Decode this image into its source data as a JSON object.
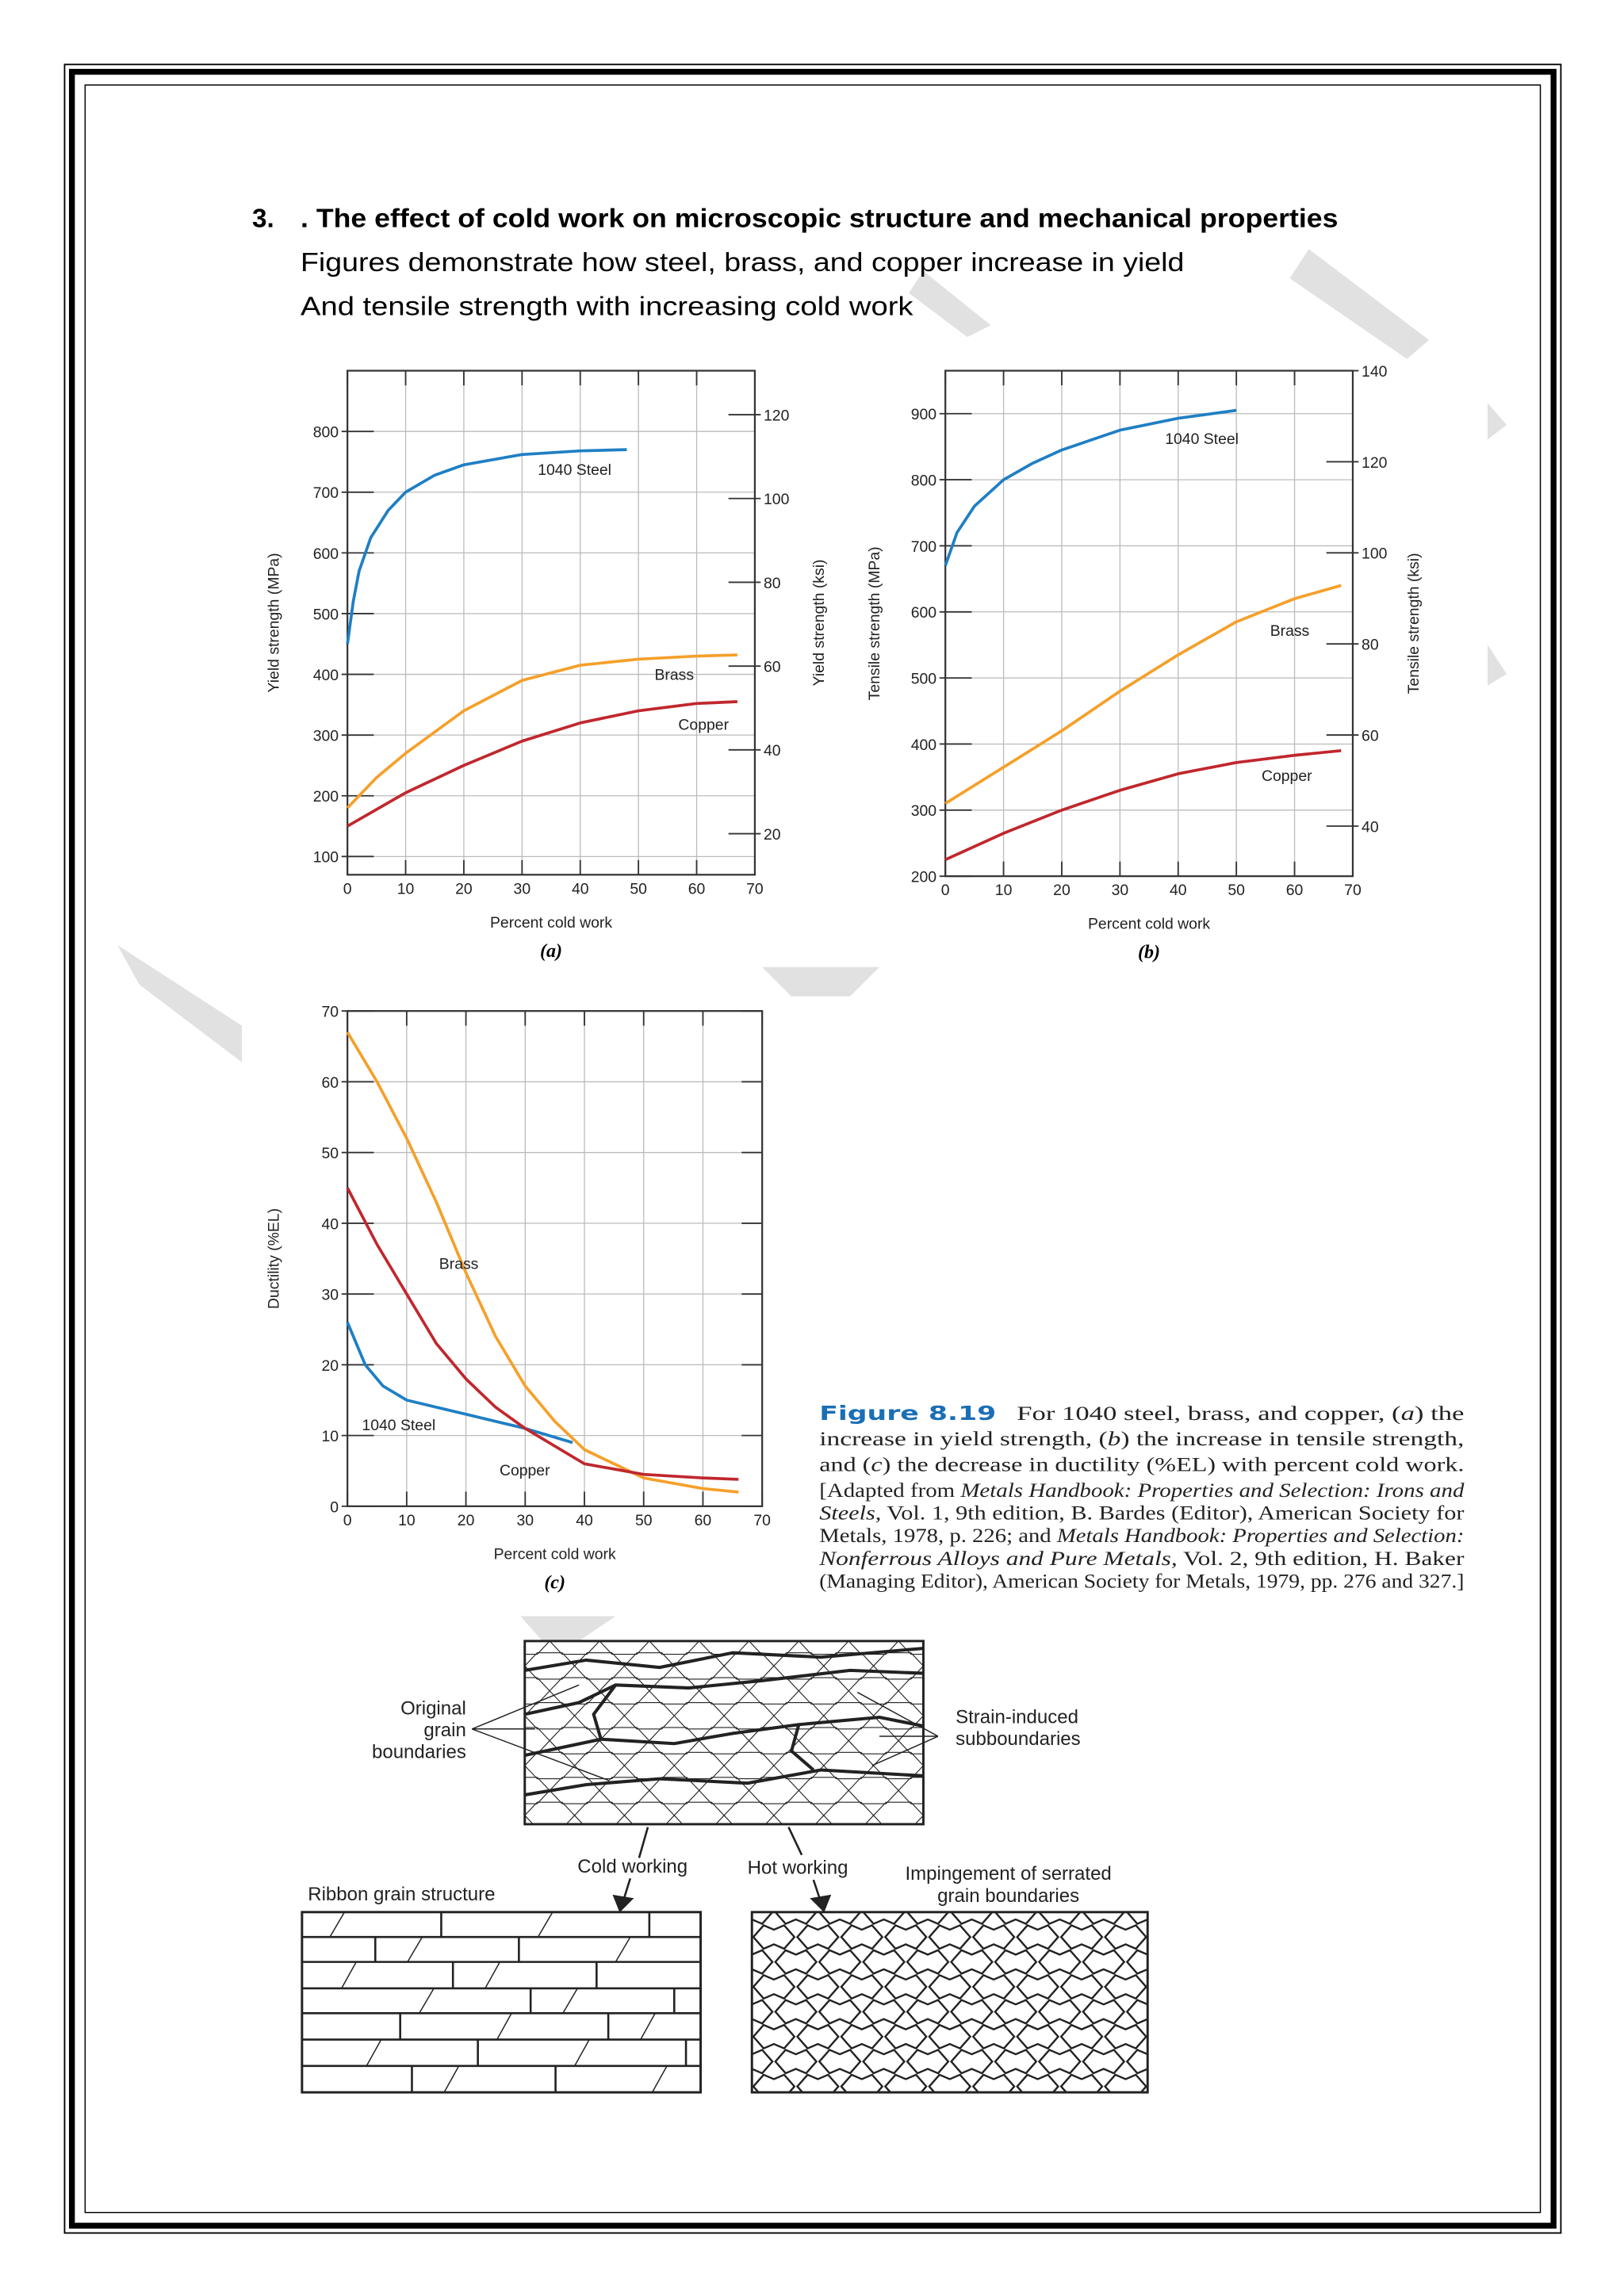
{
  "heading": {
    "number": "3.",
    "title": ". The effect of cold work on microscopic structure and mechanical properties",
    "lines": [
      "Figures demonstrate how steel, brass, and copper increase in yield",
      "And tensile strength with increasing cold work"
    ]
  },
  "chart_data": [
    {
      "type": "line",
      "xlabel": "Percent cold work",
      "ylabel": "Yield strength (MPa)",
      "y2label": "Yield strength (ksi)",
      "sublabel": "(a)",
      "xlim": [
        0,
        70
      ],
      "xticks": [
        0,
        10,
        20,
        30,
        40,
        50,
        60,
        70
      ],
      "ylim": [
        70,
        900
      ],
      "yticks": [
        100,
        200,
        300,
        400,
        500,
        600,
        700,
        800
      ],
      "y2lim": [
        10.2,
        130.5
      ],
      "y2ticks": [
        20,
        40,
        60,
        80,
        100,
        120
      ],
      "grid": true,
      "series": [
        {
          "name": "1040 Steel",
          "color": "#1f7fc4",
          "x": [
            0,
            1,
            2,
            4,
            7,
            10,
            15,
            20,
            30,
            40,
            48
          ],
          "values": [
            450,
            520,
            570,
            625,
            670,
            700,
            728,
            745,
            762,
            768,
            770
          ]
        },
        {
          "name": "Brass",
          "color": "#f5a02a",
          "x": [
            0,
            5,
            10,
            15,
            20,
            25,
            30,
            40,
            50,
            60,
            67
          ],
          "values": [
            180,
            230,
            270,
            305,
            340,
            365,
            390,
            415,
            425,
            430,
            432
          ]
        },
        {
          "name": "Copper",
          "color": "#c0272d",
          "x": [
            0,
            10,
            20,
            30,
            40,
            50,
            60,
            67
          ],
          "values": [
            150,
            205,
            250,
            290,
            320,
            340,
            352,
            355
          ]
        }
      ]
    },
    {
      "type": "line",
      "xlabel": "Percent cold work",
      "ylabel": "Tensile strength (MPa)",
      "y2label": "Tensile strength (ksi)",
      "sublabel": "(b)",
      "xlim": [
        0,
        70
      ],
      "xticks": [
        0,
        10,
        20,
        30,
        40,
        50,
        60,
        70
      ],
      "ylim": [
        200,
        965
      ],
      "yticks": [
        200,
        300,
        400,
        500,
        600,
        700,
        800,
        900
      ],
      "y2lim": [
        29,
        140
      ],
      "y2ticks": [
        40,
        60,
        80,
        100,
        120,
        140
      ],
      "grid": true,
      "series": [
        {
          "name": "1040 Steel",
          "color": "#1f7fc4",
          "x": [
            0,
            2,
            5,
            10,
            15,
            20,
            30,
            40,
            50
          ],
          "values": [
            670,
            720,
            760,
            800,
            825,
            845,
            875,
            893,
            905
          ]
        },
        {
          "name": "Brass",
          "color": "#f5a02a",
          "x": [
            0,
            10,
            20,
            30,
            40,
            50,
            60,
            68
          ],
          "values": [
            310,
            365,
            420,
            480,
            535,
            585,
            620,
            640
          ]
        },
        {
          "name": "Copper",
          "color": "#c0272d",
          "x": [
            0,
            10,
            20,
            30,
            40,
            50,
            60,
            68
          ],
          "values": [
            225,
            265,
            300,
            330,
            355,
            372,
            383,
            390
          ]
        }
      ]
    },
    {
      "type": "line",
      "xlabel": "Percent cold work",
      "ylabel": "Ductility (%EL)",
      "sublabel": "(c)",
      "xlim": [
        0,
        70
      ],
      "xticks": [
        0,
        10,
        20,
        30,
        40,
        50,
        60,
        70
      ],
      "ylim": [
        0,
        70
      ],
      "yticks": [
        0,
        10,
        20,
        30,
        40,
        50,
        60,
        70
      ],
      "grid": true,
      "series": [
        {
          "name": "1040 Steel",
          "color": "#1f7fc4",
          "x": [
            0,
            3,
            6,
            10,
            15,
            20,
            30,
            38
          ],
          "values": [
            26,
            20,
            17,
            15,
            14,
            13,
            11,
            9
          ]
        },
        {
          "name": "Brass",
          "color": "#f5a02a",
          "x": [
            0,
            5,
            10,
            15,
            20,
            25,
            30,
            35,
            40,
            50,
            60,
            66
          ],
          "values": [
            67,
            60,
            52,
            43,
            33,
            24,
            17,
            12,
            8,
            4,
            2.5,
            2
          ]
        },
        {
          "name": "Copper",
          "color": "#c0272d",
          "x": [
            0,
            5,
            10,
            15,
            20,
            25,
            30,
            40,
            50,
            60,
            66
          ],
          "values": [
            45,
            37,
            30,
            23,
            18,
            14,
            11,
            6,
            4.5,
            4,
            3.8
          ]
        }
      ]
    }
  ],
  "caption": {
    "label": "Figure 8.19",
    "lines": [
      [
        {
          "text": "   For 1040 steel, brass, and copper, ("
        },
        {
          "text": "a",
          "italic": true
        },
        {
          "text": ") the"
        }
      ],
      [
        {
          "text": "increase in yield strength, ("
        },
        {
          "text": "b",
          "italic": true
        },
        {
          "text": ") the increase in tensile strength,"
        }
      ],
      [
        {
          "text": "and ("
        },
        {
          "text": "c",
          "italic": true
        },
        {
          "text": ") the decrease in ductility (%EL) with percent cold work."
        }
      ],
      [
        {
          "text": "[Adapted from "
        },
        {
          "text": "Metals Handbook: Properties and Selection: Irons and",
          "italic": true
        }
      ],
      [
        {
          "text": "Steels,",
          "italic": true
        },
        {
          "text": " Vol. 1, 9th edition, B. Bardes (Editor), American Society for"
        }
      ],
      [
        {
          "text": "Metals, 1978, p. 226; and "
        },
        {
          "text": "Metals Handbook: Properties and Selection:",
          "italic": true
        }
      ],
      [
        {
          "text": "Nonferrous Alloys and Pure Metals,",
          "italic": true
        },
        {
          "text": " Vol. 2, 9th edition, H. Baker"
        }
      ],
      [
        {
          "text": "(Managing Editor), American Society for Metals, 1979, pp. 276 and 327.]"
        }
      ]
    ]
  },
  "diagram": {
    "original": [
      "Original",
      "grain",
      "boundaries"
    ],
    "strain": [
      "Strain-induced",
      "subboundaries"
    ],
    "cold": "Cold working",
    "hot": "Hot working",
    "ribbon": "Ribbon grain structure",
    "impingement": [
      "Impingement of serrated",
      "grain boundaries"
    ]
  }
}
